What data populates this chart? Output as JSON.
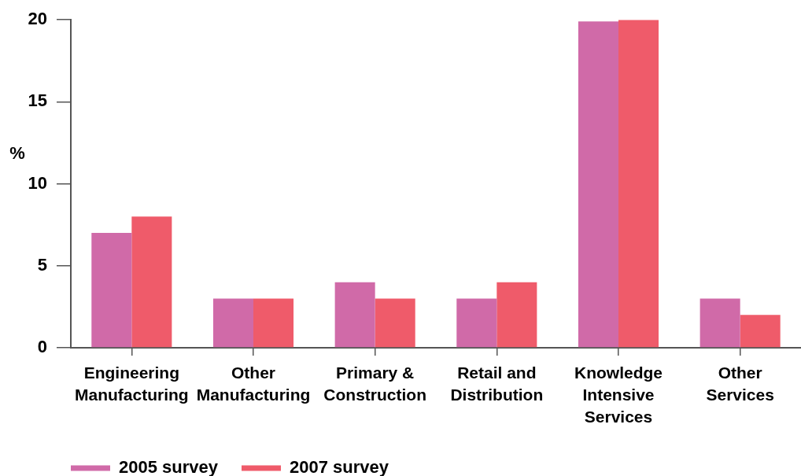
{
  "chart_data": {
    "type": "bar",
    "categories": [
      "Engineering\nManufacturing",
      "Other\nManufacturing",
      "Primary &\nConstruction",
      "Retail and\nDistribution",
      "Knowledge\nIntensive\nServices",
      "Other\nServices"
    ],
    "series": [
      {
        "name": "2005 survey",
        "color": "#d06aa8",
        "values": [
          7,
          3,
          4,
          3,
          19.9,
          3
        ]
      },
      {
        "name": "2007 survey",
        "color": "#ef5b6a",
        "values": [
          8,
          3,
          3,
          4,
          20,
          2
        ]
      }
    ],
    "ylabel": "%",
    "ylim": [
      0,
      20
    ],
    "yticks": [
      0,
      5,
      10,
      15,
      20
    ],
    "legend": "bottom left"
  }
}
